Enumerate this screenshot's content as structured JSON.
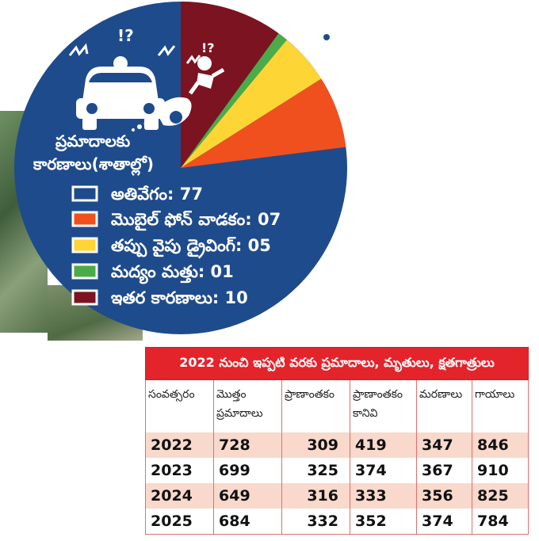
{
  "colors": {
    "background": "#1e4b8c",
    "speeding": "#1e4b8c",
    "mobile": "#f0501e",
    "wrong_side": "#fdd535",
    "alcohol": "#4bab49",
    "others": "#7c1320",
    "table_header": "#e3242b",
    "row_tint": "#f8d9cc"
  },
  "pie": {
    "title_line1": "ప్రమాదాలకు",
    "title_line2": "కారణాలు(శాతాల్లో)"
  },
  "chart_data": {
    "type": "pie",
    "title": "ప్రమాదాలకు కారణాలు(శాతాల్లో)",
    "slices": [
      {
        "label": "అతివేగం",
        "value": 77,
        "display": "77",
        "color": "#1e4b8c"
      },
      {
        "label": "మొబైల్ ఫోన్ వాడకం",
        "value": 7,
        "display": "07",
        "color": "#f0501e"
      },
      {
        "label": "తప్పు వైపు డ్రైవింగ్",
        "value": 5,
        "display": "05",
        "color": "#fdd535"
      },
      {
        "label": "మద్యం మత్తు",
        "value": 1,
        "display": "01",
        "color": "#4bab49"
      },
      {
        "label": "ఇతర కారణాలు",
        "value": 10,
        "display": "10",
        "color": "#7c1320"
      }
    ],
    "legend_position": "left"
  },
  "legend": [
    {
      "text": "అతివేగం: 77",
      "color": "#1e4b8c"
    },
    {
      "text": "మొబైల్ ఫోన్ వాడకం: 07",
      "color": "#f0501e"
    },
    {
      "text": "తప్పు వైపు డ్రైవింగ్: 05",
      "color": "#fdd535"
    },
    {
      "text": "మద్యం మత్తు: 01",
      "color": "#4bab49"
    },
    {
      "text": "ఇతర కారణాలు: 10",
      "color": "#7c1320"
    }
  ],
  "icons": {
    "crash_marks_1": "!?",
    "crash_marks_2": "!?"
  },
  "table": {
    "title": "2022 నుంచి ఇప్పటి వరకు ప్రమాదాలు, మృతులు, క్షతగాత్రులు",
    "columns": [
      "సంవత్సరం",
      "మొత్తం ప్రమాదాలు",
      "ప్రాణాంతకం",
      "ప్రాణాంతకం కానివి",
      "మరణాలు",
      "గాయాలు"
    ],
    "rows": [
      [
        "2022",
        "728",
        "309",
        "419",
        "347",
        "846"
      ],
      [
        "2023",
        "699",
        "325",
        "374",
        "367",
        "910"
      ],
      [
        "2024",
        "649",
        "316",
        "333",
        "356",
        "825"
      ],
      [
        "2025",
        "684",
        "332",
        "352",
        "374",
        "784"
      ]
    ]
  }
}
